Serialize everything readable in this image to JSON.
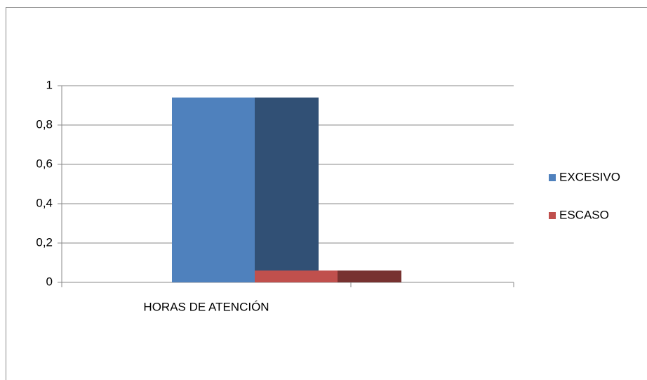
{
  "chart_data": {
    "type": "bar",
    "categories": [
      "HORAS DE ATENCIÓN"
    ],
    "series": [
      {
        "name": "EXCESIVO",
        "color": "#4f81bd",
        "values": [
          0.94
        ]
      },
      {
        "name": "ESCASO",
        "color": "#c0504d",
        "values": [
          0.06
        ]
      }
    ],
    "ylim": [
      0,
      1
    ],
    "yticks": [
      0,
      {
        "value": 0.2,
        "label": "0,2"
      },
      {
        "value": 0.4,
        "label": "0,4"
      },
      {
        "value": 0.6,
        "label": "0,6"
      },
      {
        "value": 0.8,
        "label": "0,8"
      },
      1
    ],
    "grid": true,
    "legend": "right"
  }
}
